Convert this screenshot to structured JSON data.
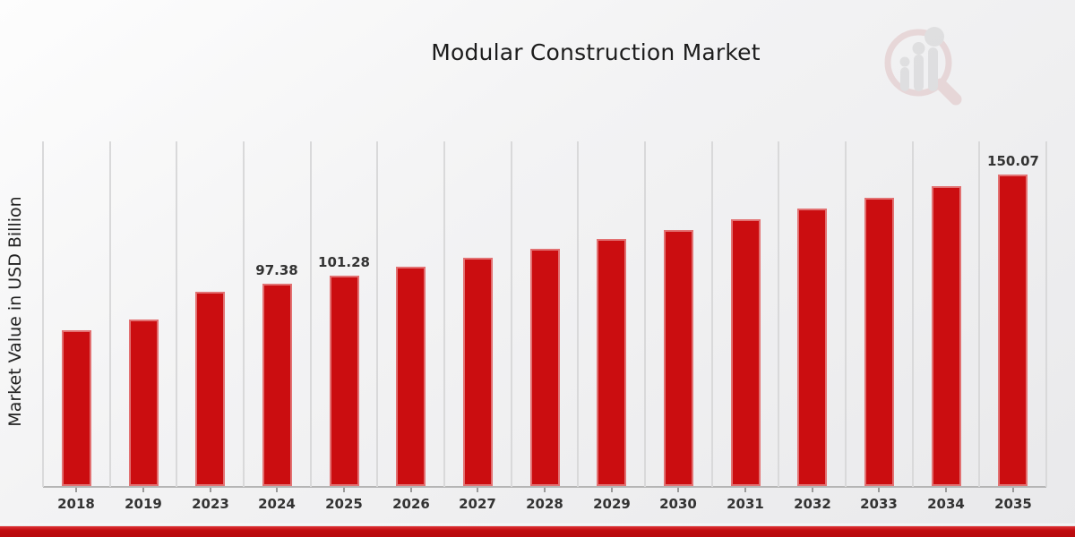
{
  "title": "Modular Construction Market",
  "y_axis_label": "Market Value in USD Billion",
  "chart_data": {
    "type": "bar",
    "title": "Modular Construction Market",
    "xlabel": "",
    "ylabel": "Market Value in USD Billion",
    "unit": "USD Billion",
    "categories": [
      "2018",
      "2019",
      "2023",
      "2024",
      "2025",
      "2026",
      "2027",
      "2028",
      "2029",
      "2030",
      "2031",
      "2032",
      "2033",
      "2034",
      "2035"
    ],
    "values": [
      75.0,
      80.3,
      93.6,
      97.38,
      101.28,
      105.5,
      109.8,
      114.2,
      118.8,
      123.4,
      128.4,
      133.5,
      139.0,
      144.5,
      150.07
    ],
    "data_labels": [
      "",
      "",
      "",
      "97.38",
      "101.28",
      "",
      "",
      "",
      "",
      "",
      "",
      "",
      "",
      "",
      "150.07"
    ],
    "ylim": [
      0,
      166.4
    ],
    "bar_color": "#cb0d10",
    "gridlines": "vertical-category-separators",
    "gridline_color": "#d9d9da",
    "axis_line_color": "#b5b5b5",
    "label_color": "#333333",
    "legend": "none"
  },
  "watermark": {
    "name": "magnifier-bar-chart-logo"
  },
  "footer": {
    "accent_color": "#c00b0e"
  }
}
